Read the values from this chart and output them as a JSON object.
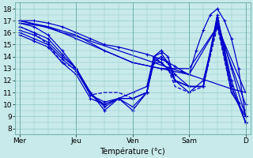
{
  "xlabel": "Température (°c)",
  "bg_color": "#c8eaea",
  "grid_color": "#8cc8c8",
  "line_color": "#0000cc",
  "day_labels": [
    "Mer",
    "Jeu",
    "Ven",
    "Sam",
    "D"
  ],
  "day_positions": [
    0,
    24,
    48,
    72,
    96
  ],
  "ylim": [
    7.5,
    18.5
  ],
  "xlim": [
    -2,
    98
  ],
  "yticks": [
    8,
    9,
    10,
    11,
    12,
    13,
    14,
    15,
    16,
    17,
    18
  ],
  "series": [
    {
      "x": [
        0,
        6,
        12,
        18,
        24,
        30,
        36,
        42,
        48,
        54,
        60,
        66,
        72,
        78,
        84,
        90,
        96
      ],
      "y": [
        17.0,
        16.7,
        16.4,
        16.0,
        15.7,
        15.3,
        14.9,
        14.5,
        14.1,
        13.7,
        13.3,
        12.9,
        12.5,
        12.1,
        11.7,
        11.3,
        11.0
      ],
      "style": "solid",
      "marker": false
    },
    {
      "x": [
        0,
        12,
        24,
        36,
        48,
        60,
        72,
        84,
        96
      ],
      "y": [
        16.8,
        16.5,
        15.8,
        14.5,
        13.5,
        13.0,
        13.0,
        16.5,
        11.0
      ],
      "style": "solid",
      "marker": false
    },
    {
      "x": [
        0,
        6,
        12,
        18,
        24,
        30,
        36,
        42,
        48,
        54,
        57,
        60,
        63,
        66,
        69,
        72,
        75,
        78,
        81,
        84,
        87,
        90,
        93,
        96
      ],
      "y": [
        17.0,
        17.0,
        16.8,
        16.5,
        16.0,
        15.5,
        15.0,
        14.8,
        14.5,
        14.2,
        14.0,
        13.8,
        13.5,
        13.2,
        12.8,
        12.5,
        14.5,
        16.2,
        17.5,
        18.0,
        17.0,
        15.5,
        13.0,
        9.0
      ],
      "style": "solid",
      "marker": true
    },
    {
      "x": [
        0,
        6,
        12,
        18,
        24,
        30,
        36,
        42,
        48,
        54,
        57,
        60,
        63,
        66,
        72,
        78,
        84,
        90,
        96
      ],
      "y": [
        16.8,
        16.5,
        15.8,
        14.5,
        13.0,
        11.0,
        9.5,
        10.5,
        11.0,
        11.5,
        14.0,
        14.3,
        13.5,
        12.5,
        11.5,
        11.5,
        17.5,
        11.5,
        8.5
      ],
      "style": "solid",
      "marker": true
    },
    {
      "x": [
        0,
        6,
        12,
        18,
        24,
        30,
        36,
        42,
        48,
        54,
        57,
        60,
        63,
        66,
        72,
        78,
        84,
        90,
        96
      ],
      "y": [
        16.5,
        16.0,
        15.5,
        14.2,
        13.0,
        11.0,
        9.8,
        10.5,
        10.5,
        11.0,
        14.0,
        14.5,
        14.0,
        12.0,
        11.5,
        11.5,
        17.3,
        12.0,
        8.5
      ],
      "style": "solid",
      "marker": true
    },
    {
      "x": [
        0,
        6,
        12,
        18,
        24,
        30,
        36,
        42,
        48,
        54,
        57,
        60,
        63,
        66,
        72,
        78,
        84,
        90,
        96
      ],
      "y": [
        16.0,
        15.5,
        15.0,
        13.8,
        12.8,
        10.8,
        10.0,
        10.5,
        10.5,
        11.0,
        13.5,
        14.0,
        13.5,
        12.0,
        11.5,
        11.5,
        17.0,
        13.0,
        9.0
      ],
      "style": "solid",
      "marker": true
    },
    {
      "x": [
        0,
        6,
        12,
        18,
        24,
        30,
        36,
        42,
        48,
        54,
        57,
        60,
        63,
        66,
        72,
        78,
        84,
        90,
        96
      ],
      "y": [
        16.2,
        15.8,
        15.2,
        14.0,
        13.0,
        10.8,
        10.2,
        10.5,
        9.8,
        11.0,
        14.0,
        13.5,
        13.0,
        12.0,
        11.5,
        11.5,
        17.0,
        11.5,
        8.5
      ],
      "style": "solid",
      "marker": true
    },
    {
      "x": [
        0,
        6,
        12,
        18,
        24,
        30,
        36,
        42,
        48,
        54,
        57,
        60,
        63,
        66,
        72,
        78,
        84,
        90,
        96
      ],
      "y": [
        15.8,
        15.3,
        14.8,
        13.5,
        12.5,
        10.5,
        10.0,
        10.5,
        9.5,
        11.0,
        13.8,
        13.5,
        13.0,
        12.0,
        11.0,
        12.0,
        16.8,
        11.0,
        9.0
      ],
      "style": "solid",
      "marker": true
    },
    {
      "x": [
        0,
        12,
        24,
        36,
        48,
        60,
        72,
        84,
        96
      ],
      "y": [
        17.0,
        16.5,
        15.5,
        14.5,
        13.5,
        13.0,
        12.5,
        16.5,
        10.0
      ],
      "style": "solid",
      "marker": true
    },
    {
      "x": [
        0,
        6,
        12,
        18,
        24,
        30,
        36,
        42,
        48,
        54,
        57,
        60,
        63,
        66,
        72,
        78,
        84,
        90,
        96
      ],
      "y": [
        16.5,
        16.0,
        15.0,
        13.5,
        13.0,
        10.8,
        11.0,
        11.0,
        10.5,
        11.0,
        13.5,
        13.5,
        13.0,
        11.5,
        11.0,
        11.5,
        16.5,
        11.0,
        9.5
      ],
      "style": "dashed",
      "marker": false
    }
  ]
}
